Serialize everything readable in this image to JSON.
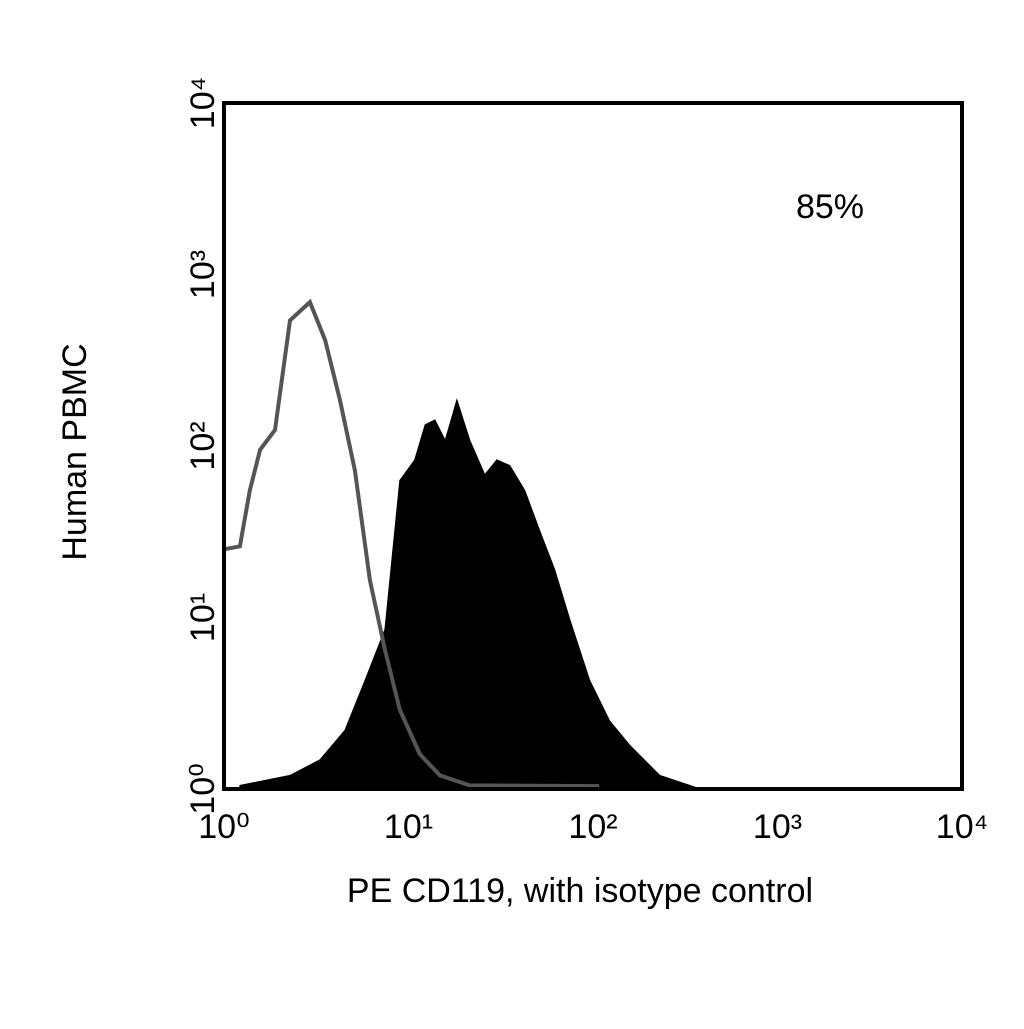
{
  "chart_data": {
    "type": "histogram-line",
    "xlabel": "PE CD119, with isotype control",
    "ylabel": "Human PBMC",
    "annotation": "85%",
    "xscale": "log",
    "yscale": "log",
    "xlim": [
      1,
      10000
    ],
    "ylim": [
      1,
      10000
    ],
    "xticks": [
      {
        "value": 1,
        "label": "10⁰"
      },
      {
        "value": 10,
        "label": "10¹"
      },
      {
        "value": 100,
        "label": "10²"
      },
      {
        "value": 1000,
        "label": "10³"
      },
      {
        "value": 10000,
        "label": "10⁴"
      }
    ],
    "yticks": [
      {
        "value": 1,
        "label": "10⁰"
      },
      {
        "value": 10,
        "label": "10¹"
      },
      {
        "value": 100,
        "label": "10²"
      },
      {
        "value": 1000,
        "label": "10³"
      },
      {
        "value": 10000,
        "label": "10⁴"
      }
    ],
    "grid": false,
    "series": [
      {
        "color": "#000000",
        "filled": true,
        "x": [
          1.22,
          2.28,
          3.31,
          4.52,
          5.81,
          7.45,
          8.97,
          10.8,
          12.3,
          13.9,
          15.8,
          18.3,
          21.5,
          25.9,
          30.1,
          35.4,
          42.7,
          51.5,
          62,
          75,
          96,
          123,
          158,
          230,
          334,
          380
        ],
        "values": [
          1.05,
          1.2,
          1.48,
          2.2,
          4.3,
          8.5,
          63,
          83,
          133,
          142,
          108,
          186,
          108,
          68,
          83,
          77,
          55,
          32,
          19,
          9.7,
          4.3,
          2.5,
          1.8,
          1.2,
          1.05,
          1
        ]
      },
      {
        "color": "#555555",
        "filled": false,
        "x": [
          1,
          1.22,
          1.38,
          1.57,
          1.89,
          2.28,
          2.92,
          3.53,
          4.25,
          5.12,
          6.18,
          7.45,
          8.97,
          11.5,
          14.8,
          21.5,
          108
        ],
        "values": [
          25,
          26,
          55,
          95,
          124,
          540,
          690,
          415,
          186,
          72,
          16.5,
          6.5,
          2.9,
          1.6,
          1.2,
          1.05,
          1.04
        ]
      }
    ]
  }
}
